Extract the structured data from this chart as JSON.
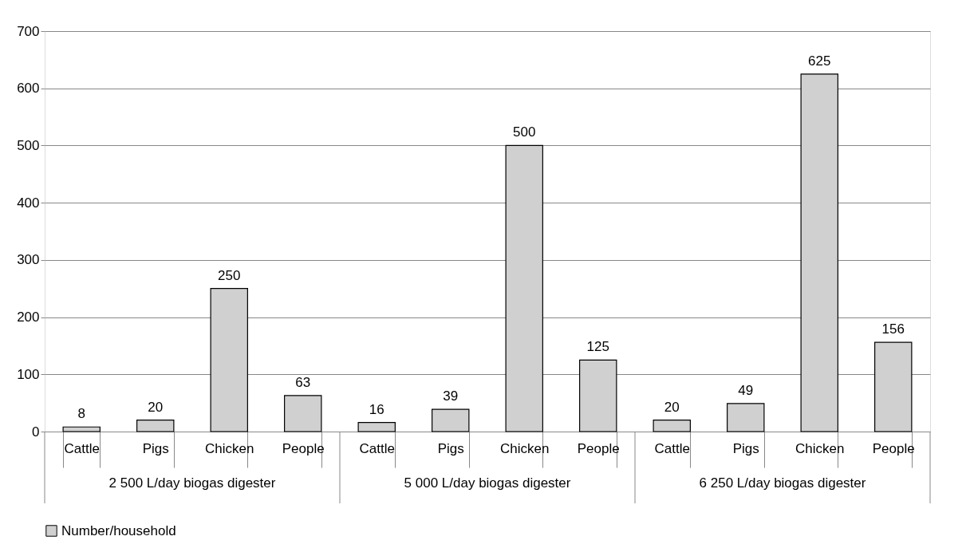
{
  "chart_data": {
    "type": "bar",
    "categories": [
      "Cattle",
      "Pigs",
      "Chicken",
      "People",
      "Cattle",
      "Pigs",
      "Chicken",
      "People",
      "Cattle",
      "Pigs",
      "Chicken",
      "People"
    ],
    "series": [
      {
        "name": "Number/household",
        "color": "#d0d0d0",
        "values": [
          8,
          20,
          250,
          63,
          16,
          39,
          500,
          125,
          20,
          49,
          625,
          156
        ]
      }
    ],
    "annotations": [
      "2 500 L/day biogas digester",
      "5 000 L/day biogas digester",
      "6 250 L/day biogas digester"
    ],
    "ylim": [
      0,
      700
    ],
    "yticks": [
      0,
      100,
      200,
      300,
      400,
      500,
      600,
      700
    ],
    "grid": "y",
    "legend": "bottom",
    "data_labels": true
  }
}
